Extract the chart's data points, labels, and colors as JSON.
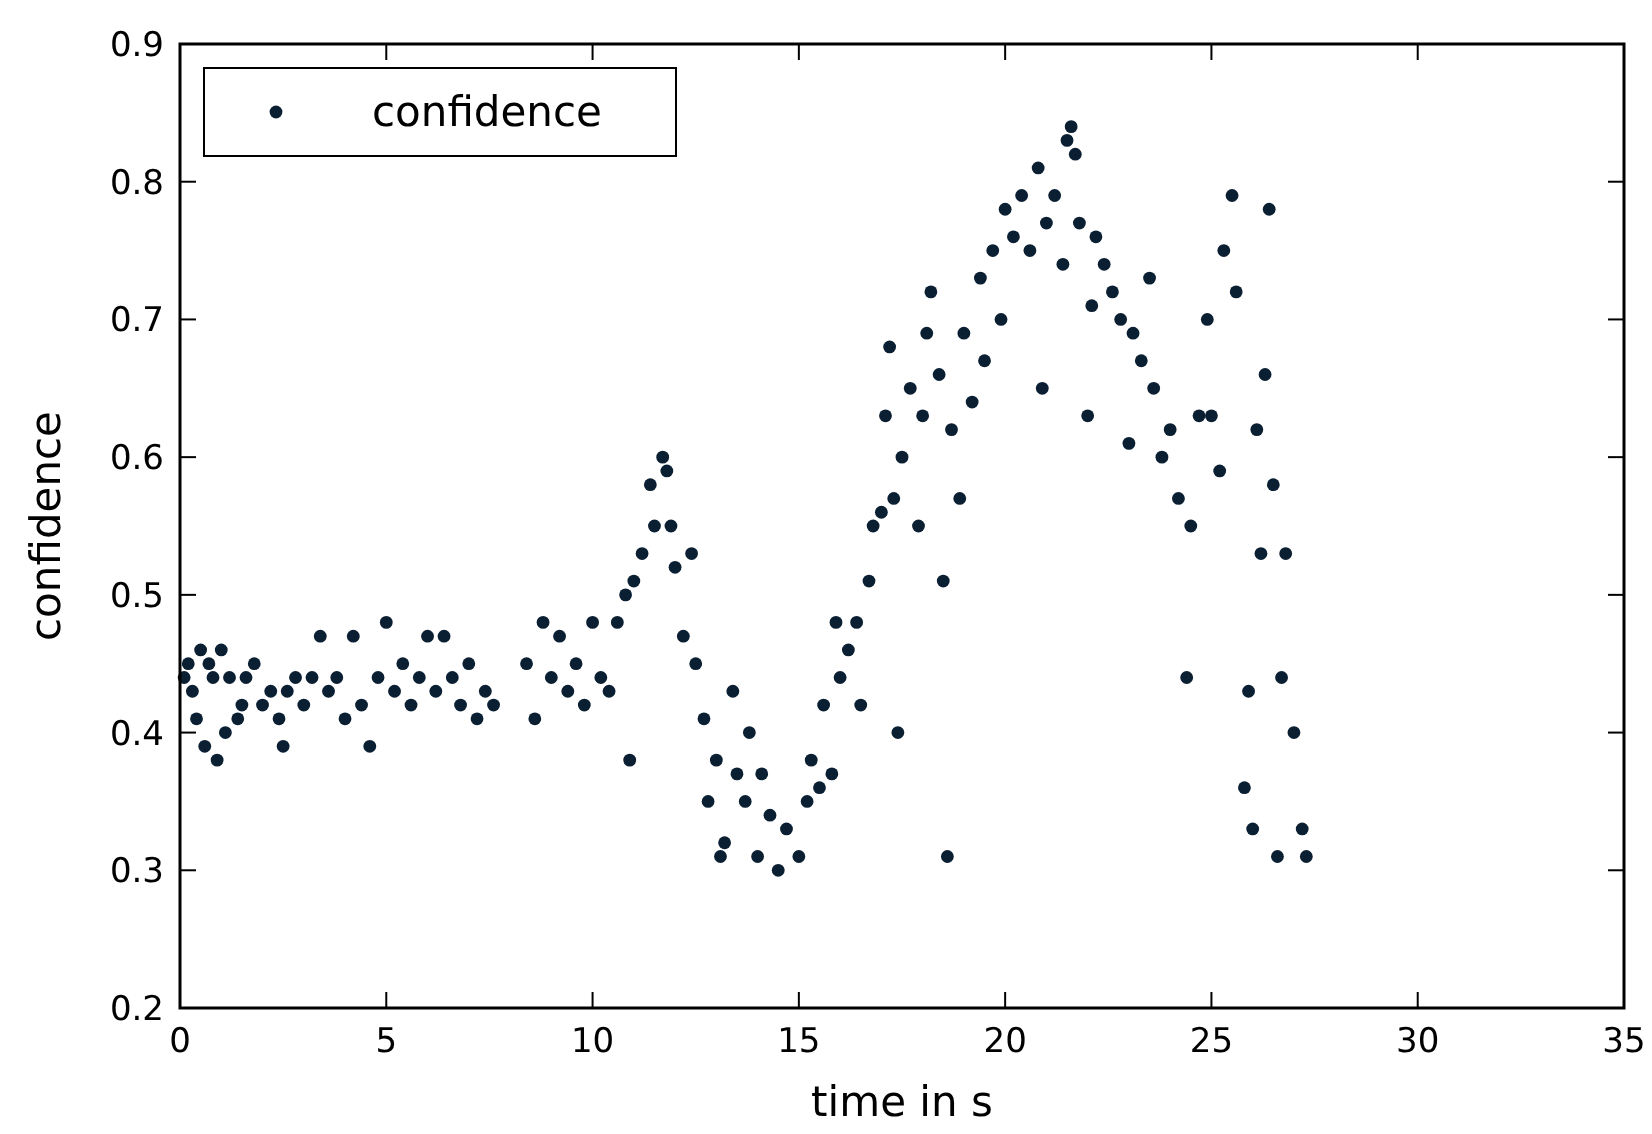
{
  "chart_data": {
    "type": "scatter",
    "xlabel": "time in s",
    "ylabel": "confidence",
    "xlim": [
      0,
      35
    ],
    "ylim": [
      0.2,
      0.9
    ],
    "xticks": [
      0,
      5,
      10,
      15,
      20,
      25,
      30,
      35
    ],
    "yticks": [
      0.2,
      0.3,
      0.4,
      0.5,
      0.6,
      0.7,
      0.8,
      0.9
    ],
    "legend": "top left",
    "marker": "circle",
    "grid": false,
    "series": [
      {
        "name": "confidence",
        "color": "#0b1f33",
        "x": [
          0.1,
          0.2,
          0.3,
          0.4,
          0.5,
          0.6,
          0.7,
          0.8,
          0.9,
          1.0,
          1.1,
          1.2,
          1.4,
          1.5,
          1.6,
          1.8,
          2.0,
          2.2,
          2.4,
          2.5,
          2.6,
          2.8,
          3.0,
          3.2,
          3.4,
          3.6,
          3.8,
          4.0,
          4.2,
          4.4,
          4.6,
          4.8,
          5.0,
          5.2,
          5.4,
          5.6,
          5.8,
          6.0,
          6.2,
          6.4,
          6.6,
          6.8,
          7.0,
          7.2,
          7.4,
          7.6,
          8.4,
          8.6,
          8.8,
          9.0,
          9.2,
          9.4,
          9.6,
          9.8,
          10.0,
          10.2,
          10.4,
          10.6,
          10.8,
          10.9,
          11.0,
          11.2,
          11.4,
          11.5,
          11.7,
          11.8,
          11.9,
          12.0,
          12.2,
          12.4,
          12.5,
          12.7,
          12.8,
          13.0,
          13.1,
          13.2,
          13.4,
          13.5,
          13.7,
          13.8,
          14.0,
          14.1,
          14.3,
          14.5,
          14.7,
          15.0,
          15.2,
          15.3,
          15.5,
          15.6,
          15.8,
          15.9,
          16.0,
          16.2,
          16.4,
          16.5,
          16.7,
          16.8,
          17.0,
          17.1,
          17.2,
          17.3,
          17.4,
          17.5,
          17.7,
          17.9,
          18.0,
          18.1,
          18.2,
          18.4,
          18.5,
          18.6,
          18.7,
          18.9,
          19.0,
          19.2,
          19.4,
          19.5,
          19.7,
          19.9,
          20.0,
          20.2,
          20.4,
          20.6,
          20.8,
          20.9,
          21.0,
          21.2,
          21.4,
          21.5,
          21.6,
          21.7,
          21.8,
          22.0,
          22.1,
          22.2,
          22.4,
          22.6,
          22.8,
          23.0,
          23.1,
          23.3,
          23.5,
          23.6,
          23.8,
          24.0,
          24.2,
          24.4,
          24.5,
          24.7,
          24.9,
          25.0,
          25.2,
          25.3,
          25.5,
          25.6,
          25.8,
          25.9,
          26.0,
          26.1,
          26.2,
          26.3,
          26.4,
          26.5,
          26.6,
          26.7,
          26.8,
          27.0,
          27.2,
          27.3
        ],
        "values": [
          0.44,
          0.45,
          0.43,
          0.41,
          0.46,
          0.39,
          0.45,
          0.44,
          0.38,
          0.46,
          0.4,
          0.44,
          0.41,
          0.42,
          0.44,
          0.45,
          0.42,
          0.43,
          0.41,
          0.39,
          0.43,
          0.44,
          0.42,
          0.44,
          0.47,
          0.43,
          0.44,
          0.41,
          0.47,
          0.42,
          0.39,
          0.44,
          0.48,
          0.43,
          0.45,
          0.42,
          0.44,
          0.47,
          0.43,
          0.47,
          0.44,
          0.42,
          0.45,
          0.41,
          0.43,
          0.42,
          0.45,
          0.41,
          0.48,
          0.44,
          0.47,
          0.43,
          0.45,
          0.42,
          0.48,
          0.44,
          0.43,
          0.48,
          0.5,
          0.38,
          0.51,
          0.53,
          0.58,
          0.55,
          0.6,
          0.59,
          0.55,
          0.52,
          0.47,
          0.53,
          0.45,
          0.41,
          0.35,
          0.38,
          0.31,
          0.32,
          0.43,
          0.37,
          0.35,
          0.4,
          0.31,
          0.37,
          0.34,
          0.3,
          0.33,
          0.31,
          0.35,
          0.38,
          0.36,
          0.42,
          0.37,
          0.48,
          0.44,
          0.46,
          0.48,
          0.42,
          0.51,
          0.55,
          0.56,
          0.63,
          0.68,
          0.57,
          0.4,
          0.6,
          0.65,
          0.55,
          0.63,
          0.69,
          0.72,
          0.66,
          0.51,
          0.31,
          0.62,
          0.57,
          0.69,
          0.64,
          0.73,
          0.67,
          0.75,
          0.7,
          0.78,
          0.76,
          0.79,
          0.75,
          0.81,
          0.65,
          0.77,
          0.79,
          0.74,
          0.83,
          0.84,
          0.82,
          0.77,
          0.63,
          0.71,
          0.76,
          0.74,
          0.72,
          0.7,
          0.61,
          0.69,
          0.67,
          0.73,
          0.65,
          0.6,
          0.62,
          0.57,
          0.44,
          0.55,
          0.63,
          0.7,
          0.63,
          0.59,
          0.75,
          0.79,
          0.72,
          0.36,
          0.43,
          0.33,
          0.62,
          0.53,
          0.66,
          0.78,
          0.58,
          0.31,
          0.44,
          0.53,
          0.4,
          0.33,
          0.31
        ]
      }
    ]
  }
}
